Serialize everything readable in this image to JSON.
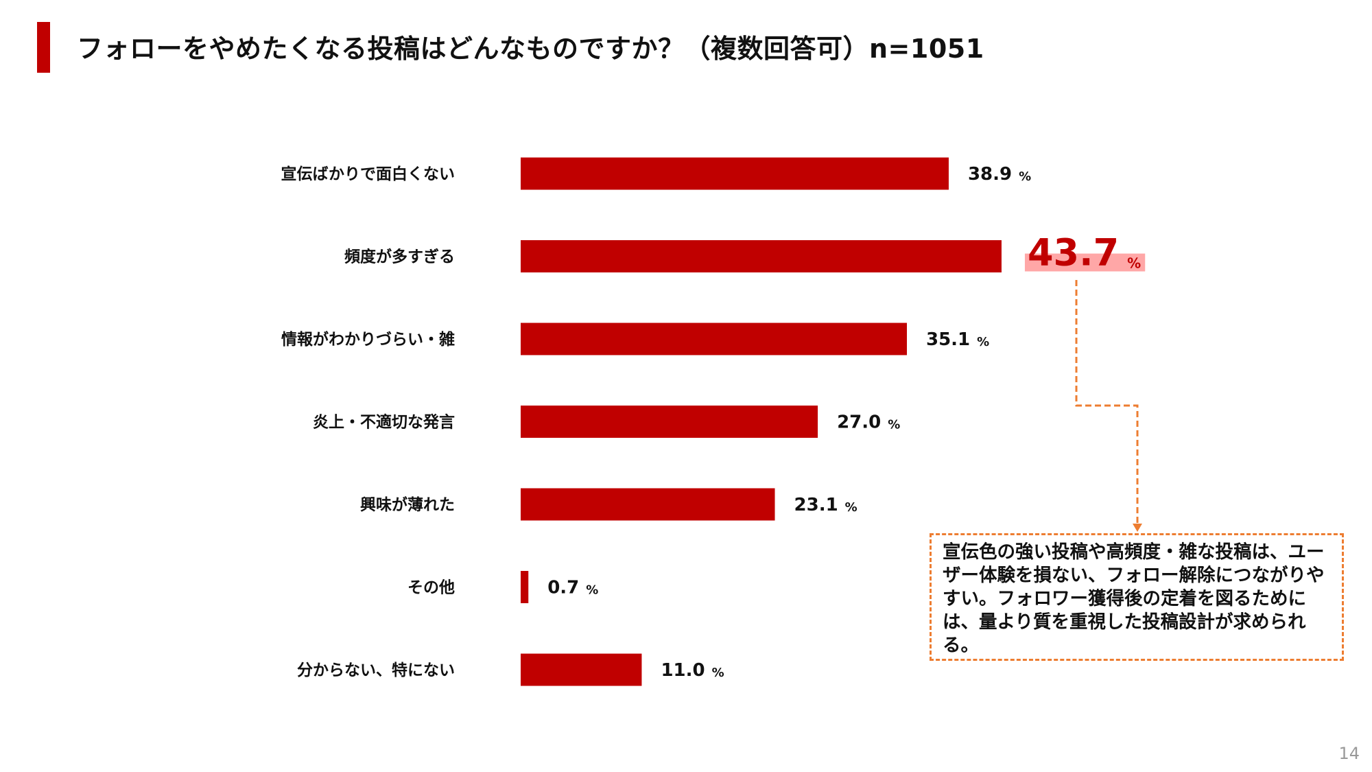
{
  "title": "フォローをやめたくなる投稿はどんなものですか？（複数回答可）n=1051",
  "chart_data": {
    "type": "bar",
    "orientation": "horizontal",
    "categories": [
      "宣伝ばかりで面白くない",
      "頻度が多すぎる",
      "情報がわかりづらい・雑",
      "炎上・不適切な発言",
      "興味が薄れた",
      "その他",
      "分からない、特にない"
    ],
    "values": [
      38.9,
      43.7,
      35.1,
      27.0,
      23.1,
      0.7,
      11.0
    ],
    "value_labels": [
      "38.9",
      "43.7",
      "35.1",
      "27.0",
      "23.1",
      "0.7",
      "11.0"
    ],
    "unit": "%",
    "highlight_index": 1,
    "bar_color": "#c00000",
    "highlight_text_color": "#c00000",
    "highlight_bg_color": "#ffa7a7",
    "xlim": [
      0,
      50
    ],
    "grid": false
  },
  "callout": {
    "text": "宣伝色の強い投稿や高頻度・雑な投稿は、ユーザー体験を損ない、フォロー解除につながりやすい。フォロワー獲得後の定着を図るためには、量より質を重視した投稿設計が求められる。",
    "border_color": "#ed7d31"
  },
  "page_number": "14"
}
